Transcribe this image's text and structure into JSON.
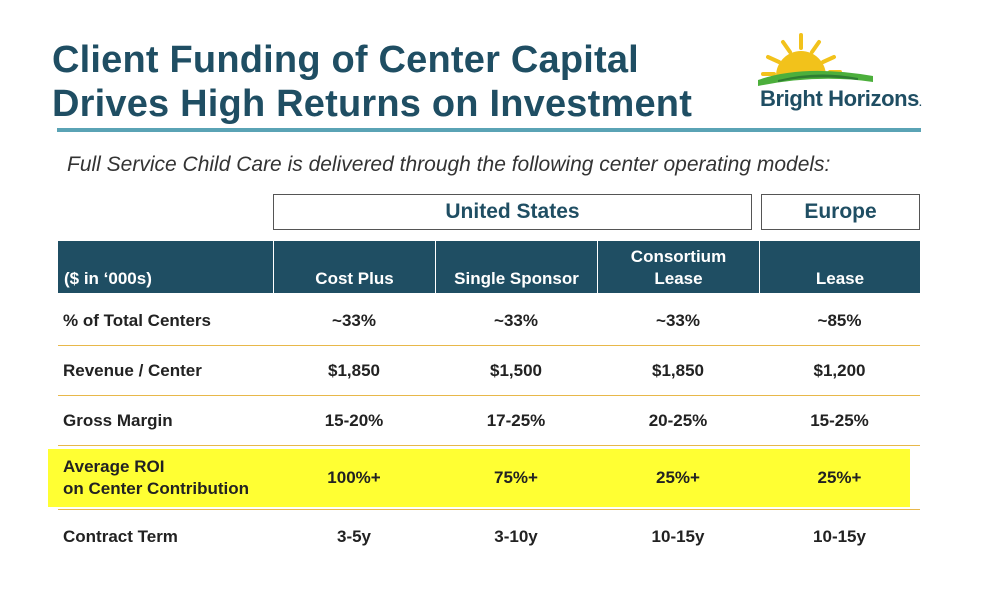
{
  "title": {
    "line1": "Client Funding of Center Capital",
    "line2": "Drives High Returns on Investment"
  },
  "logo": {
    "brand": "Bright Horizons",
    "reg": "."
  },
  "subtitle": "Full Service Child Care is delivered through the following center operating models:",
  "groups": {
    "us": "United States",
    "europe": "Europe"
  },
  "table": {
    "headers": [
      "($ in ‘000s)",
      "Cost Plus",
      "Single Sponsor",
      "Consortium Lease",
      "Lease"
    ],
    "rows": [
      {
        "label": "% of Total Centers",
        "values": [
          "~33%",
          "~33%",
          "~33%",
          "~85%"
        ]
      },
      {
        "label": "Revenue / Center",
        "values": [
          "$1,850",
          "$1,500",
          "$1,850",
          "$1,200"
        ]
      },
      {
        "label": "Gross Margin",
        "values": [
          "15-20%",
          "17-25%",
          "20-25%",
          "15-25%"
        ]
      },
      {
        "label_line1": "Average ROI",
        "label_line2": "on Center Contribution",
        "values": [
          "100%+",
          "75%+",
          "25%+",
          "25%+"
        ]
      },
      {
        "label": "Contract Term",
        "values": [
          "3-5y",
          "3-10y",
          "10-15y",
          "10-15y"
        ]
      }
    ]
  },
  "colors": {
    "navy": "#1f4e63",
    "teal": "#5aa3b5",
    "highlight": "#ffff33",
    "rule": "#e8b84a"
  }
}
